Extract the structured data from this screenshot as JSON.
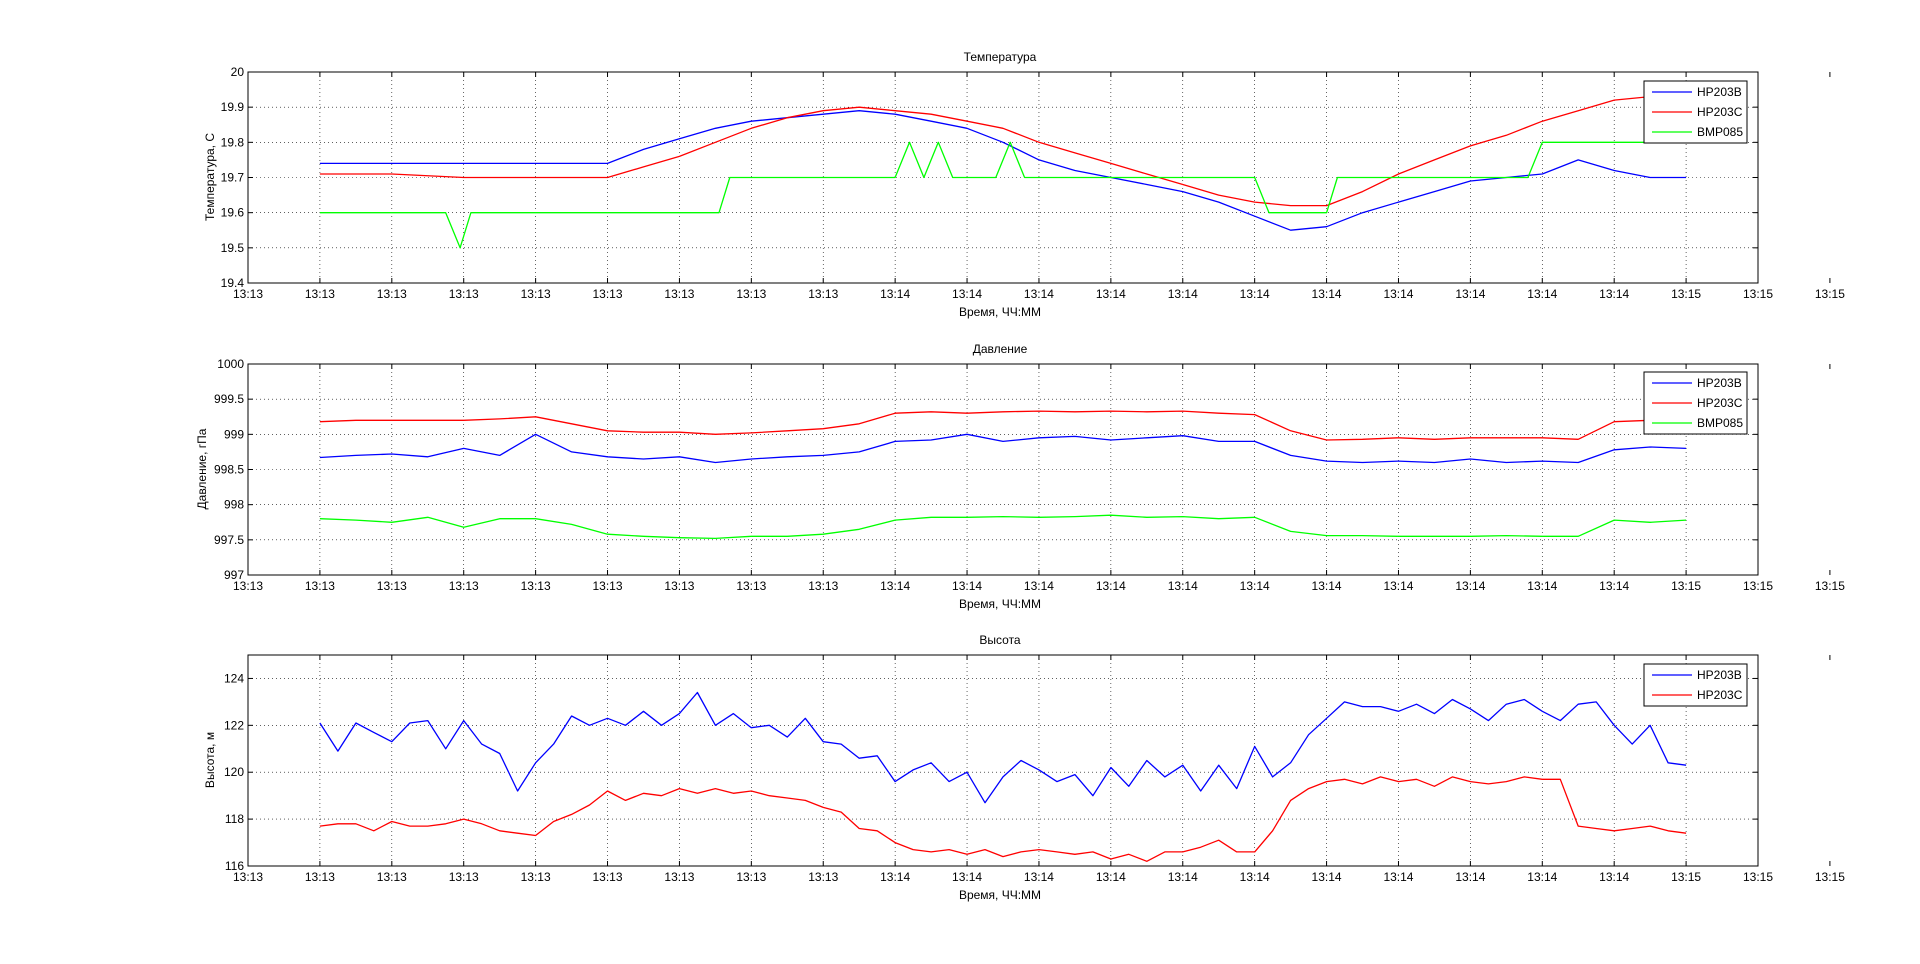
{
  "figure": {
    "background": "#ffffff"
  },
  "chart_data": [
    {
      "type": "line",
      "title": "Температура",
      "xlabel": "Время, ЧЧ:ММ",
      "ylabel": "Температура, С",
      "ylim": [
        19.4,
        20
      ],
      "yticks": [
        19.4,
        19.5,
        19.6,
        19.7,
        19.8,
        19.9,
        20
      ],
      "ytick_labels": [
        "19.4",
        "19.5",
        "19.6",
        "19.7",
        "19.8",
        "19.9",
        "20"
      ],
      "xlim": [
        0,
        21
      ],
      "xtick_labels": [
        "13:13",
        "13:13",
        "13:13",
        "13:13",
        "13:13",
        "13:13",
        "13:13",
        "13:13",
        "13:13",
        "13:14",
        "13:14",
        "13:14",
        "13:14",
        "13:14",
        "13:14",
        "13:14",
        "13:14",
        "13:14",
        "13:14",
        "13:14",
        "13:15",
        "13:15",
        "13:15"
      ],
      "grid": true,
      "legend_position": "top-right",
      "series": [
        {
          "name": "HP203B",
          "color": "#0000ff",
          "x": [
            1,
            2,
            3,
            4,
            5,
            5.5,
            6,
            6.5,
            7,
            7.5,
            8,
            8.5,
            9,
            9.5,
            10,
            10.5,
            11,
            11.5,
            12,
            12.5,
            13,
            13.5,
            14,
            14.5,
            15,
            15.5,
            16,
            16.5,
            17,
            17.5,
            18,
            18.5,
            19,
            19.5,
            20
          ],
          "y": [
            19.74,
            19.74,
            19.74,
            19.74,
            19.74,
            19.78,
            19.81,
            19.84,
            19.86,
            19.87,
            19.88,
            19.89,
            19.88,
            19.86,
            19.84,
            19.8,
            19.75,
            19.72,
            19.7,
            19.68,
            19.66,
            19.63,
            19.59,
            19.55,
            19.56,
            19.6,
            19.63,
            19.66,
            19.69,
            19.7,
            19.71,
            19.75,
            19.72,
            19.7,
            19.7
          ]
        },
        {
          "name": "HP203C",
          "color": "#ff0000",
          "x": [
            1,
            2,
            3,
            4,
            5,
            5.5,
            6,
            6.5,
            7,
            7.5,
            8,
            8.5,
            9,
            9.5,
            10,
            10.5,
            11,
            11.5,
            12,
            12.5,
            13,
            13.5,
            14,
            14.5,
            15,
            15.5,
            16,
            16.5,
            17,
            17.5,
            18,
            18.5,
            19,
            19.5,
            20
          ],
          "y": [
            19.71,
            19.71,
            19.7,
            19.7,
            19.7,
            19.73,
            19.76,
            19.8,
            19.84,
            19.87,
            19.89,
            19.9,
            19.89,
            19.88,
            19.86,
            19.84,
            19.8,
            19.77,
            19.74,
            19.71,
            19.68,
            19.65,
            19.63,
            19.62,
            19.62,
            19.66,
            19.71,
            19.75,
            19.79,
            19.82,
            19.86,
            19.89,
            19.92,
            19.93,
            19.93
          ]
        },
        {
          "name": "BMP085",
          "color": "#00ff00",
          "x": [
            1,
            2,
            2.75,
            2.95,
            3.1,
            5,
            6.55,
            6.7,
            9,
            9.2,
            9.4,
            9.6,
            9.8,
            10,
            10.4,
            10.6,
            10.8,
            12,
            14,
            14.2,
            15,
            15.15,
            16,
            17.8,
            18,
            20
          ],
          "y": [
            19.6,
            19.6,
            19.6,
            19.5,
            19.6,
            19.6,
            19.6,
            19.7,
            19.7,
            19.8,
            19.7,
            19.8,
            19.7,
            19.7,
            19.7,
            19.8,
            19.7,
            19.7,
            19.7,
            19.6,
            19.6,
            19.7,
            19.7,
            19.7,
            19.8,
            19.8
          ]
        }
      ]
    },
    {
      "type": "line",
      "title": "Давление",
      "xlabel": "Время, ЧЧ:ММ",
      "ylabel": "Давление, гПа",
      "ylim": [
        997,
        1000
      ],
      "yticks": [
        997,
        997.5,
        998,
        998.5,
        999,
        999.5,
        1000
      ],
      "ytick_labels": [
        "997",
        "997.5",
        "998",
        "998.5",
        "999",
        "999.5",
        "1000"
      ],
      "xlim": [
        0,
        21
      ],
      "xtick_labels": [
        "13:13",
        "13:13",
        "13:13",
        "13:13",
        "13:13",
        "13:13",
        "13:13",
        "13:13",
        "13:13",
        "13:14",
        "13:14",
        "13:14",
        "13:14",
        "13:14",
        "13:14",
        "13:14",
        "13:14",
        "13:14",
        "13:14",
        "13:14",
        "13:15",
        "13:15",
        "13:15"
      ],
      "grid": true,
      "legend_position": "top-right",
      "series": [
        {
          "name": "HP203B",
          "color": "#0000ff",
          "x": [
            1,
            1.5,
            2,
            2.5,
            3,
            3.5,
            4,
            4.5,
            5,
            5.5,
            6,
            6.5,
            7,
            7.5,
            8,
            8.5,
            9,
            9.5,
            10,
            10.5,
            11,
            11.5,
            12,
            12.5,
            13,
            13.5,
            14,
            14.5,
            15,
            15.5,
            16,
            16.5,
            17,
            17.5,
            18,
            18.5,
            19,
            19.5,
            20
          ],
          "y": [
            998.67,
            998.7,
            998.72,
            998.68,
            998.8,
            998.7,
            999.0,
            998.75,
            998.68,
            998.65,
            998.68,
            998.6,
            998.65,
            998.68,
            998.7,
            998.75,
            998.9,
            998.92,
            999.0,
            998.9,
            998.95,
            998.97,
            998.92,
            998.95,
            998.98,
            998.9,
            998.9,
            998.7,
            998.62,
            998.6,
            998.62,
            998.6,
            998.65,
            998.6,
            998.62,
            998.6,
            998.78,
            998.82,
            998.8
          ]
        },
        {
          "name": "HP203C",
          "color": "#ff0000",
          "x": [
            1,
            1.5,
            2,
            2.5,
            3,
            3.5,
            4,
            4.5,
            5,
            5.5,
            6,
            6.5,
            7,
            7.5,
            8,
            8.5,
            9,
            9.5,
            10,
            10.5,
            11,
            11.5,
            12,
            12.5,
            13,
            13.5,
            14,
            14.5,
            15,
            15.5,
            16,
            16.5,
            17,
            17.5,
            18,
            18.5,
            19,
            19.5,
            20
          ],
          "y": [
            999.18,
            999.2,
            999.2,
            999.2,
            999.2,
            999.22,
            999.25,
            999.15,
            999.05,
            999.03,
            999.03,
            999.0,
            999.02,
            999.05,
            999.08,
            999.15,
            999.3,
            999.32,
            999.3,
            999.32,
            999.33,
            999.32,
            999.33,
            999.32,
            999.33,
            999.3,
            999.28,
            999.05,
            998.92,
            998.93,
            998.95,
            998.93,
            998.95,
            998.95,
            998.95,
            998.93,
            999.18,
            999.2,
            999.2
          ]
        },
        {
          "name": "BMP085",
          "color": "#00ff00",
          "x": [
            1,
            1.5,
            2,
            2.5,
            3,
            3.5,
            4,
            4.5,
            5,
            5.5,
            6,
            6.5,
            7,
            7.5,
            8,
            8.5,
            9,
            9.5,
            10,
            10.5,
            11,
            11.5,
            12,
            12.5,
            13,
            13.5,
            14,
            14.5,
            15,
            15.5,
            16,
            16.5,
            17,
            17.5,
            18,
            18.5,
            19,
            19.5,
            20
          ],
          "y": [
            997.8,
            997.78,
            997.75,
            997.82,
            997.68,
            997.8,
            997.8,
            997.72,
            997.58,
            997.55,
            997.53,
            997.52,
            997.55,
            997.55,
            997.58,
            997.65,
            997.78,
            997.82,
            997.82,
            997.83,
            997.82,
            997.83,
            997.85,
            997.82,
            997.83,
            997.8,
            997.82,
            997.62,
            997.56,
            997.56,
            997.55,
            997.55,
            997.55,
            997.56,
            997.55,
            997.55,
            997.78,
            997.75,
            997.78
          ]
        }
      ]
    },
    {
      "type": "line",
      "title": "Высота",
      "xlabel": "Время, ЧЧ:ММ",
      "ylabel": "Высота, м",
      "ylim": [
        116,
        125
      ],
      "yticks": [
        116,
        118,
        120,
        122,
        124
      ],
      "ytick_labels": [
        "116",
        "118",
        "120",
        "122",
        "124"
      ],
      "xlim": [
        0,
        21
      ],
      "xtick_labels": [
        "13:13",
        "13:13",
        "13:13",
        "13:13",
        "13:13",
        "13:13",
        "13:13",
        "13:13",
        "13:13",
        "13:14",
        "13:14",
        "13:14",
        "13:14",
        "13:14",
        "13:14",
        "13:14",
        "13:14",
        "13:14",
        "13:14",
        "13:14",
        "13:15",
        "13:15",
        "13:15"
      ],
      "grid": true,
      "legend_position": "top-right",
      "series": [
        {
          "name": "HP203B",
          "color": "#0000ff",
          "x": [
            1,
            1.25,
            1.5,
            1.75,
            2,
            2.25,
            2.5,
            2.75,
            3,
            3.25,
            3.5,
            3.75,
            4,
            4.25,
            4.5,
            4.75,
            5,
            5.25,
            5.5,
            5.75,
            6,
            6.25,
            6.5,
            6.75,
            7,
            7.25,
            7.5,
            7.75,
            8,
            8.25,
            8.5,
            8.75,
            9,
            9.25,
            9.5,
            9.75,
            10,
            10.25,
            10.5,
            10.75,
            11,
            11.25,
            11.5,
            11.75,
            12,
            12.25,
            12.5,
            12.75,
            13,
            13.25,
            13.5,
            13.75,
            14,
            14.25,
            14.5,
            14.75,
            15,
            15.25,
            15.5,
            15.75,
            16,
            16.25,
            16.5,
            16.75,
            17,
            17.25,
            17.5,
            17.75,
            18,
            18.25,
            18.5,
            18.75,
            19,
            19.25,
            19.5,
            19.75,
            20
          ],
          "y": [
            122.1,
            120.9,
            122.1,
            121.7,
            121.3,
            122.1,
            122.2,
            121.0,
            122.2,
            121.2,
            120.8,
            119.2,
            120.4,
            121.2,
            122.4,
            122.0,
            122.3,
            122.0,
            122.6,
            122.0,
            122.5,
            123.4,
            122.0,
            122.5,
            121.9,
            122.0,
            121.5,
            122.3,
            121.3,
            121.2,
            120.6,
            120.7,
            119.6,
            120.1,
            120.4,
            119.6,
            120.0,
            118.7,
            119.8,
            120.5,
            120.1,
            119.6,
            119.9,
            119.0,
            120.2,
            119.4,
            120.5,
            119.8,
            120.3,
            119.2,
            120.3,
            119.3,
            121.1,
            119.8,
            120.4,
            121.6,
            122.3,
            123.0,
            122.8,
            122.8,
            122.6,
            122.9,
            122.5,
            123.1,
            122.7,
            122.2,
            122.9,
            123.1,
            122.6,
            122.2,
            122.9,
            123.0,
            122.0,
            121.2,
            122.0,
            120.4,
            120.3
          ]
        },
        {
          "name": "HP203C",
          "color": "#ff0000",
          "x": [
            1,
            1.25,
            1.5,
            1.75,
            2,
            2.25,
            2.5,
            2.75,
            3,
            3.25,
            3.5,
            3.75,
            4,
            4.25,
            4.5,
            4.75,
            5,
            5.25,
            5.5,
            5.75,
            6,
            6.25,
            6.5,
            6.75,
            7,
            7.25,
            7.5,
            7.75,
            8,
            8.25,
            8.5,
            8.75,
            9,
            9.25,
            9.5,
            9.75,
            10,
            10.25,
            10.5,
            10.75,
            11,
            11.25,
            11.5,
            11.75,
            12,
            12.25,
            12.5,
            12.75,
            13,
            13.25,
            13.5,
            13.75,
            14,
            14.25,
            14.5,
            14.75,
            15,
            15.25,
            15.5,
            15.75,
            16,
            16.25,
            16.5,
            16.75,
            17,
            17.25,
            17.5,
            17.75,
            18,
            18.25,
            18.5,
            18.75,
            19,
            19.25,
            19.5,
            19.75,
            20
          ],
          "y": [
            117.7,
            117.8,
            117.8,
            117.5,
            117.9,
            117.7,
            117.7,
            117.8,
            118.0,
            117.8,
            117.5,
            117.4,
            117.3,
            117.9,
            118.2,
            118.6,
            119.2,
            118.8,
            119.1,
            119.0,
            119.3,
            119.1,
            119.3,
            119.1,
            119.2,
            119.0,
            118.9,
            118.8,
            118.5,
            118.3,
            117.6,
            117.5,
            117.0,
            116.7,
            116.6,
            116.7,
            116.5,
            116.7,
            116.4,
            116.6,
            116.7,
            116.6,
            116.5,
            116.6,
            116.3,
            116.5,
            116.2,
            116.6,
            116.6,
            116.8,
            117.1,
            116.6,
            116.6,
            117.5,
            118.8,
            119.3,
            119.6,
            119.7,
            119.5,
            119.8,
            119.6,
            119.7,
            119.4,
            119.8,
            119.6,
            119.5,
            119.6,
            119.8,
            119.7,
            119.7,
            117.7,
            117.6,
            117.5,
            117.6,
            117.7,
            117.5,
            117.4
          ]
        }
      ]
    }
  ]
}
